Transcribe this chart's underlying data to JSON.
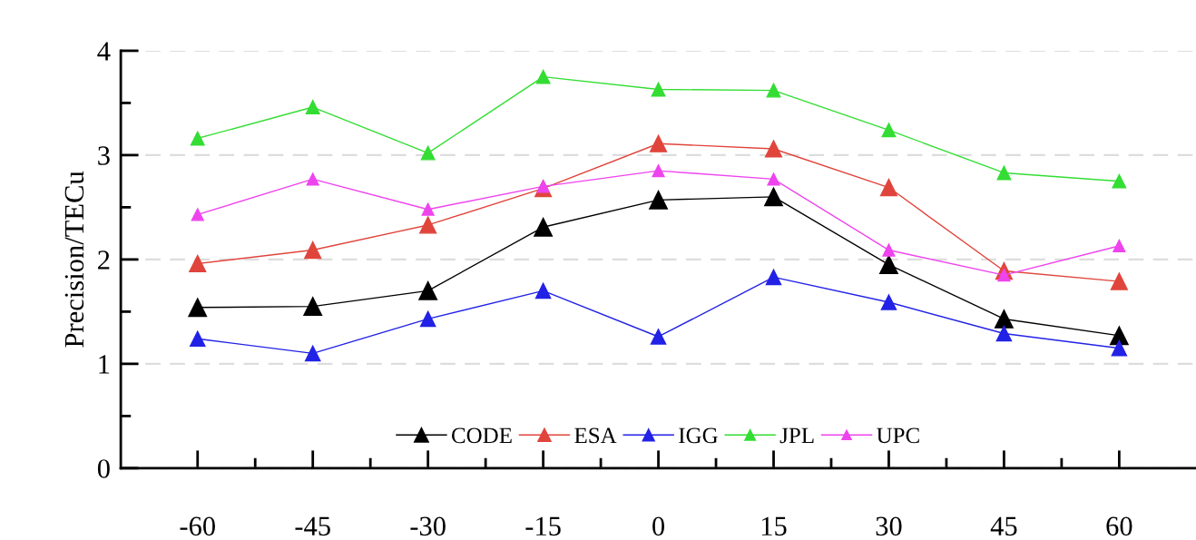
{
  "chart_data": {
    "type": "line",
    "ylabel": "Precision/TECu",
    "x": [
      -60,
      -45,
      -30,
      -15,
      0,
      15,
      30,
      45,
      60
    ],
    "series": [
      {
        "name": "CODE",
        "color": "#000000",
        "values": [
          1.54,
          1.55,
          1.7,
          2.31,
          2.57,
          2.6,
          1.95,
          1.43,
          1.27
        ]
      },
      {
        "name": "ESA",
        "color": "#e0453c",
        "values": [
          1.96,
          2.09,
          2.33,
          2.68,
          3.11,
          3.06,
          2.69,
          1.89,
          1.79
        ]
      },
      {
        "name": "IGG",
        "color": "#2222e6",
        "values": [
          1.24,
          1.1,
          1.43,
          1.7,
          1.26,
          1.83,
          1.59,
          1.29,
          1.15
        ]
      },
      {
        "name": "JPL",
        "color": "#33dd33",
        "values": [
          3.16,
          3.46,
          3.02,
          3.75,
          3.63,
          3.62,
          3.24,
          2.83,
          2.75
        ]
      },
      {
        "name": "UPC",
        "color": "#ee44ee",
        "values": [
          2.43,
          2.77,
          2.48,
          2.7,
          2.85,
          2.77,
          2.09,
          1.85,
          2.13
        ]
      }
    ],
    "xlim": [
      -70,
      70
    ],
    "xticks": [
      -60,
      -45,
      -30,
      -15,
      0,
      15,
      30,
      45,
      60
    ],
    "ylim": [
      0,
      4
    ],
    "yticks": [
      0,
      1,
      2,
      3,
      4
    ],
    "grid": "y",
    "legend": "bottom",
    "marker": "triangle",
    "line_style": "solid"
  }
}
